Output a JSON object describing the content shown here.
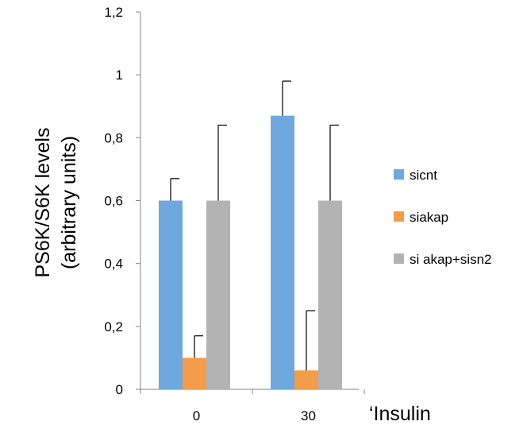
{
  "chart_data": {
    "type": "bar",
    "title": "",
    "ylabel_lines": [
      "PS6K/S6K levels",
      "(arbitrary units)"
    ],
    "xlabel": "‘Insulin",
    "categories": [
      "0",
      "30"
    ],
    "ylim": [
      0,
      1.2
    ],
    "yticks": [
      {
        "value": 0,
        "label": "0"
      },
      {
        "value": 0.2,
        "label": "0,2"
      },
      {
        "value": 0.4,
        "label": "0,4"
      },
      {
        "value": 0.6,
        "label": "0,6"
      },
      {
        "value": 0.8,
        "label": "0,8"
      },
      {
        "value": 1,
        "label": "1"
      },
      {
        "value": 1.2,
        "label": "1,2"
      }
    ],
    "grid": false,
    "legend_position": "right",
    "series": [
      {
        "name": "sicnt",
        "color": "#6fa8dc",
        "values": [
          0.6,
          0.87
        ],
        "errors": [
          0.07,
          0.11
        ]
      },
      {
        "name": "siakap",
        "color": "#f39c4a",
        "values": [
          0.1,
          0.06
        ],
        "errors": [
          0.07,
          0.19
        ]
      },
      {
        "name": "si akap+sisn2",
        "color": "#b3b3b3",
        "values": [
          0.6,
          0.6
        ],
        "errors": [
          0.24,
          0.24
        ]
      }
    ]
  }
}
